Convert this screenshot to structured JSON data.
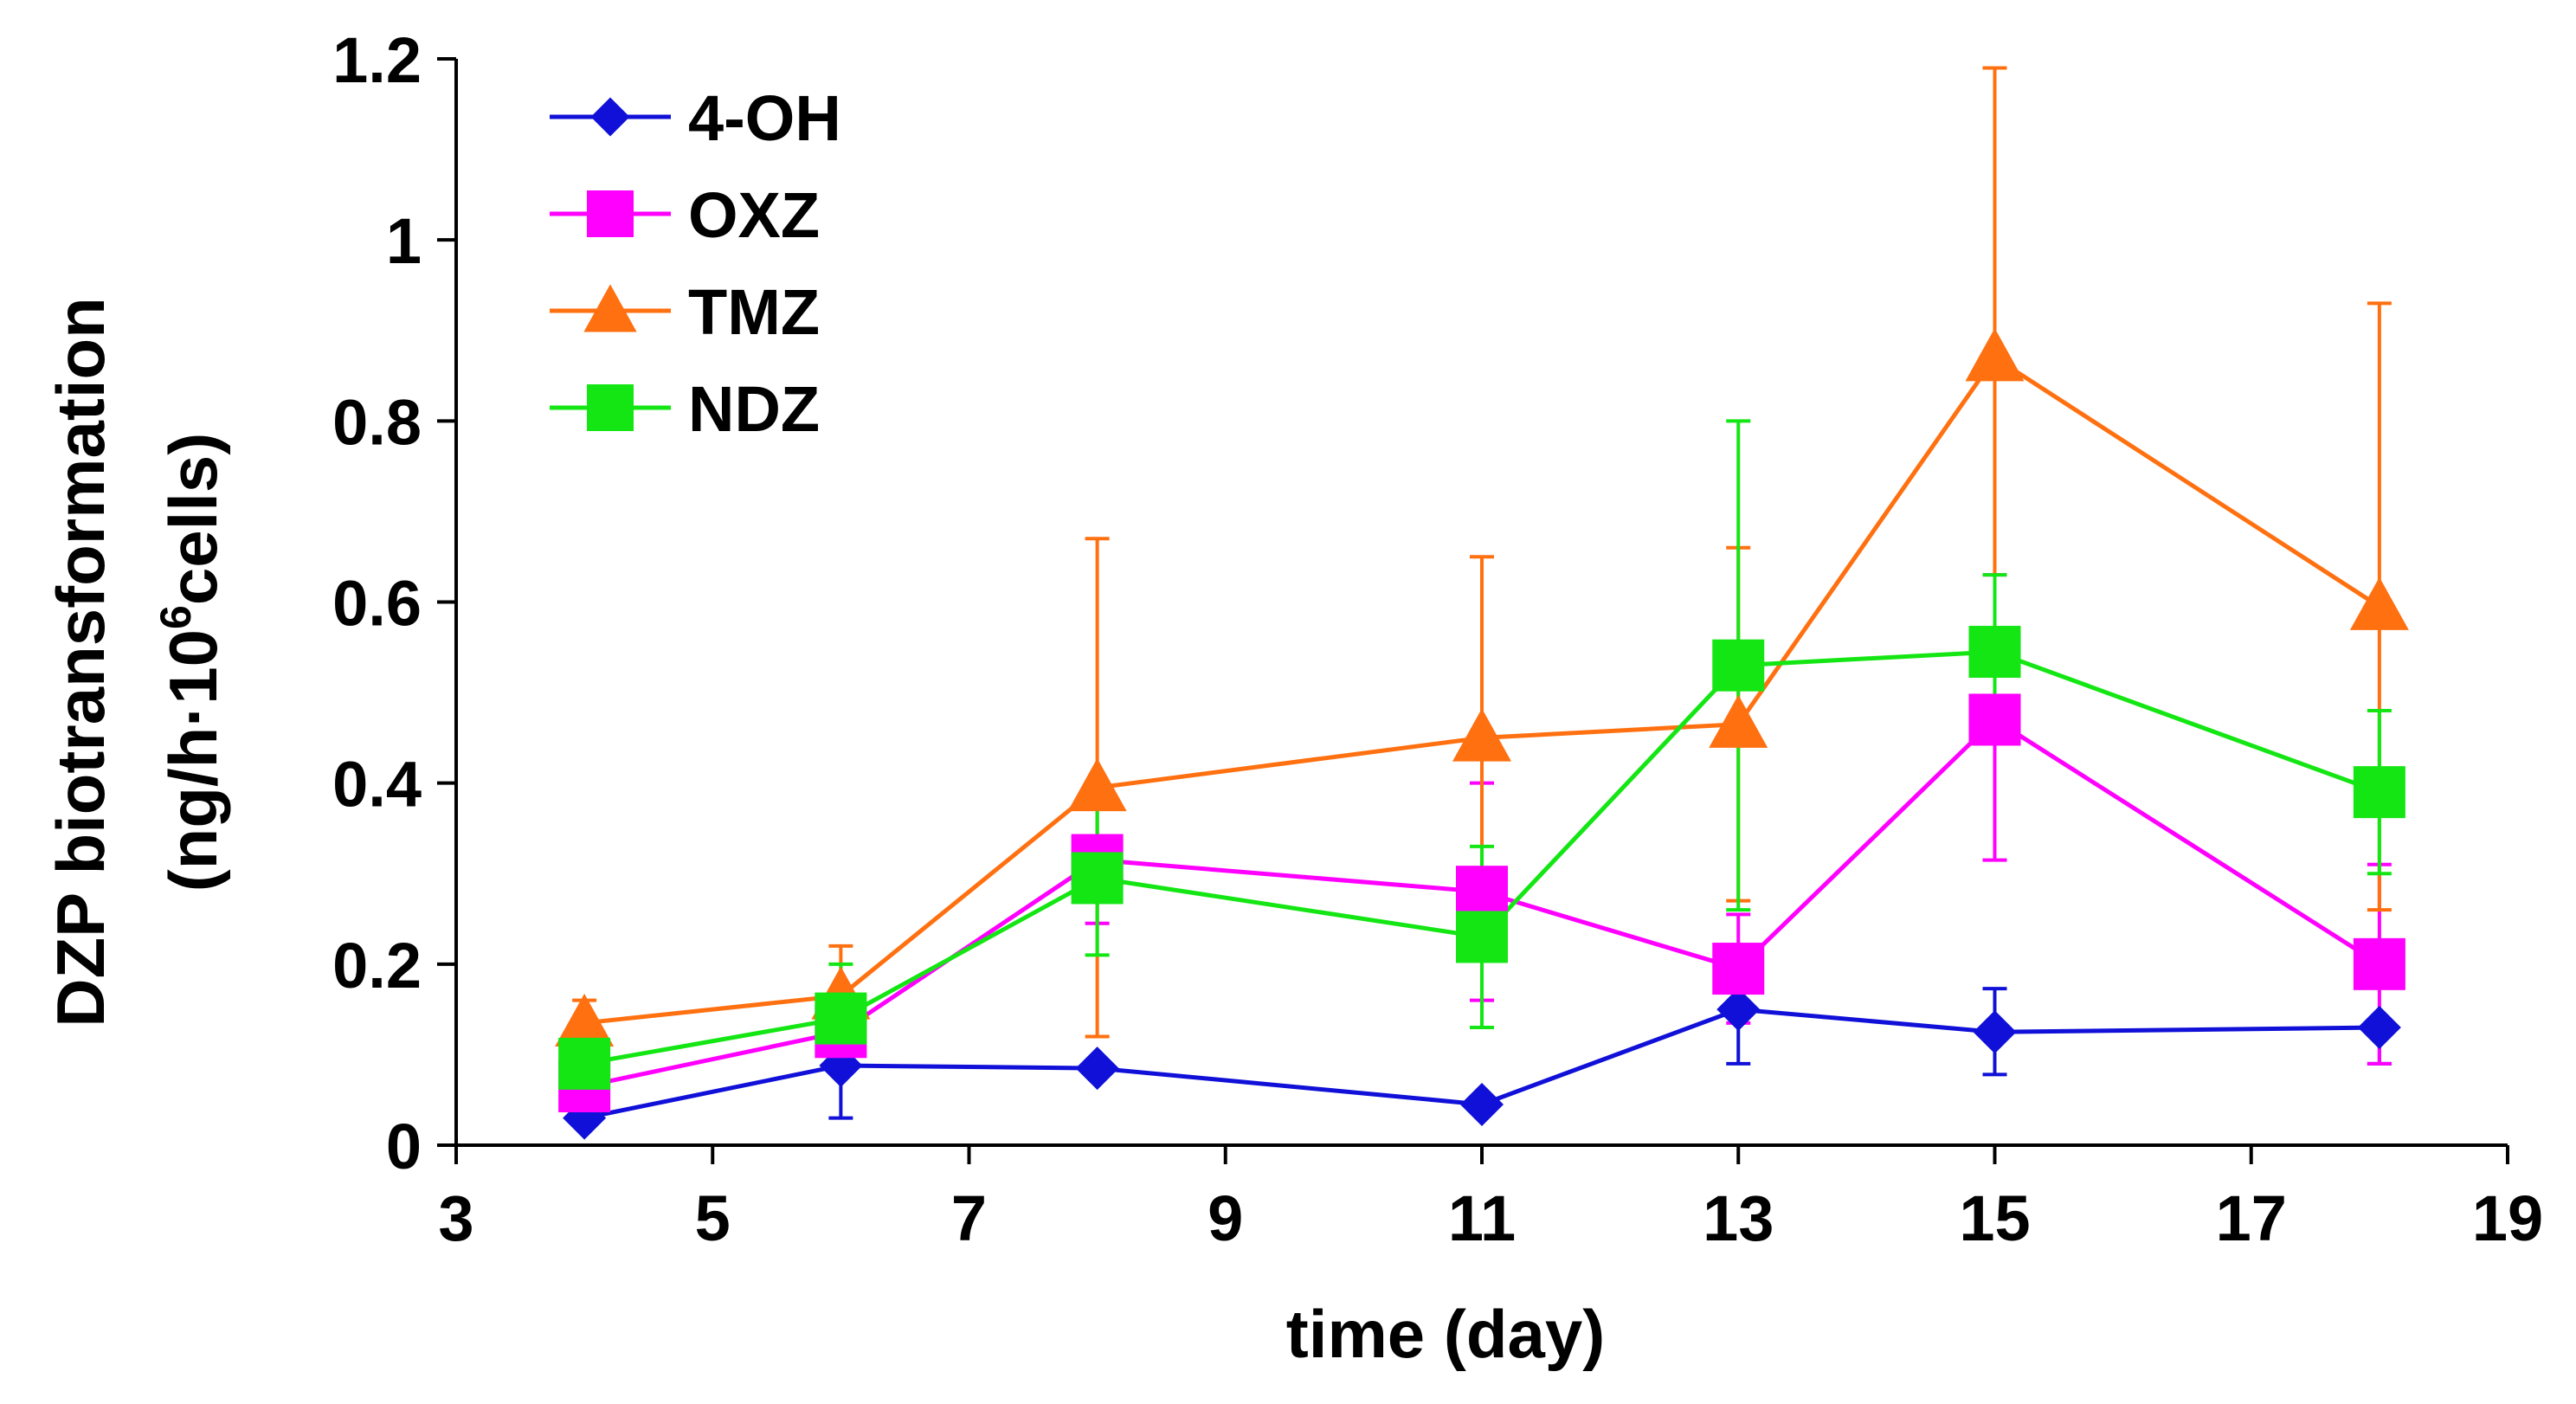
{
  "chart_data": {
    "type": "line",
    "xlabel": "time (day)",
    "ylabel_line1": "DZP biotransformation",
    "ylabel_line2_prefix": "(ng/h·10",
    "ylabel_line2_sup": "6",
    "ylabel_line2_suffix": "cells)",
    "xlim": [
      3,
      19
    ],
    "ylim": [
      0,
      1.2
    ],
    "xticks": [
      3,
      5,
      7,
      9,
      11,
      13,
      15,
      17,
      19
    ],
    "yticks": [
      0,
      0.2,
      0.4,
      0.6,
      0.8,
      1,
      1.2
    ],
    "ytick_labels": [
      "0",
      "0.2",
      "0.4",
      "0.6",
      "0.8",
      "1",
      "1.2"
    ],
    "x": [
      4,
      6,
      8,
      11,
      13,
      15,
      18
    ],
    "legend_position": "top-left",
    "series": [
      {
        "name": "4-OH",
        "color": "#1010d8",
        "marker": "diamond",
        "values": [
          0.03,
          0.088,
          0.085,
          0.045,
          0.15,
          0.125,
          0.13
        ],
        "err_upper": [
          0.015,
          0.04,
          0.0,
          0.0,
          0.0,
          0.048,
          0.0
        ],
        "err_lower": [
          0.0,
          0.058,
          0.0,
          0.0,
          0.06,
          0.047,
          0.04
        ]
      },
      {
        "name": "OXZ",
        "color": "#ff00ff",
        "marker": "square",
        "values": [
          0.065,
          0.125,
          0.315,
          0.28,
          0.195,
          0.47,
          0.2
        ],
        "err_upper": [
          0.04,
          0.04,
          0.06,
          0.12,
          0.06,
          0.16,
          0.11
        ],
        "err_lower": [
          0.03,
          0.03,
          0.07,
          0.12,
          0.06,
          0.155,
          0.11
        ]
      },
      {
        "name": "TMZ",
        "color": "#ff7010",
        "marker": "triangle",
        "values": [
          0.135,
          0.165,
          0.395,
          0.45,
          0.465,
          0.87,
          0.595
        ],
        "err_upper": [
          0.025,
          0.055,
          0.275,
          0.2,
          0.195,
          0.32,
          0.335
        ],
        "err_lower": [
          0.025,
          0.055,
          0.275,
          0.2,
          0.195,
          0.32,
          0.335
        ]
      },
      {
        "name": "NDZ",
        "color": "#14e614",
        "marker": "square",
        "values": [
          0.09,
          0.14,
          0.295,
          0.23,
          0.53,
          0.545,
          0.39
        ],
        "err_upper": [
          0.03,
          0.06,
          0.085,
          0.1,
          0.27,
          0.085,
          0.09
        ],
        "err_lower": [
          0.03,
          0.06,
          0.085,
          0.1,
          0.27,
          0.085,
          0.09
        ]
      }
    ]
  }
}
